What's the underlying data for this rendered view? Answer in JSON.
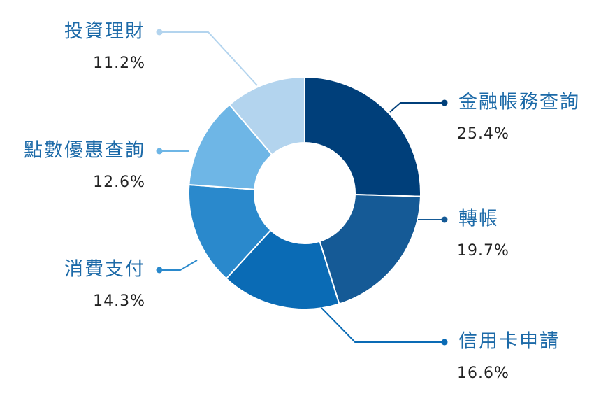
{
  "chart_data": {
    "type": "donut",
    "categories": [
      "金融帳務查詢",
      "轉帳",
      "信用卡申請",
      "消費支付",
      "點數優惠查詢",
      "投資理財"
    ],
    "values": [
      25.4,
      19.7,
      16.6,
      14.3,
      12.6,
      11.2
    ],
    "value_labels": [
      "25.4%",
      "19.7%",
      "16.6%",
      "14.3%",
      "12.6%",
      "11.2%"
    ],
    "colors": [
      "#003f7a",
      "#155a96",
      "#0a6bb5",
      "#2a89cc",
      "#6eb6e6",
      "#b3d4ee"
    ]
  }
}
